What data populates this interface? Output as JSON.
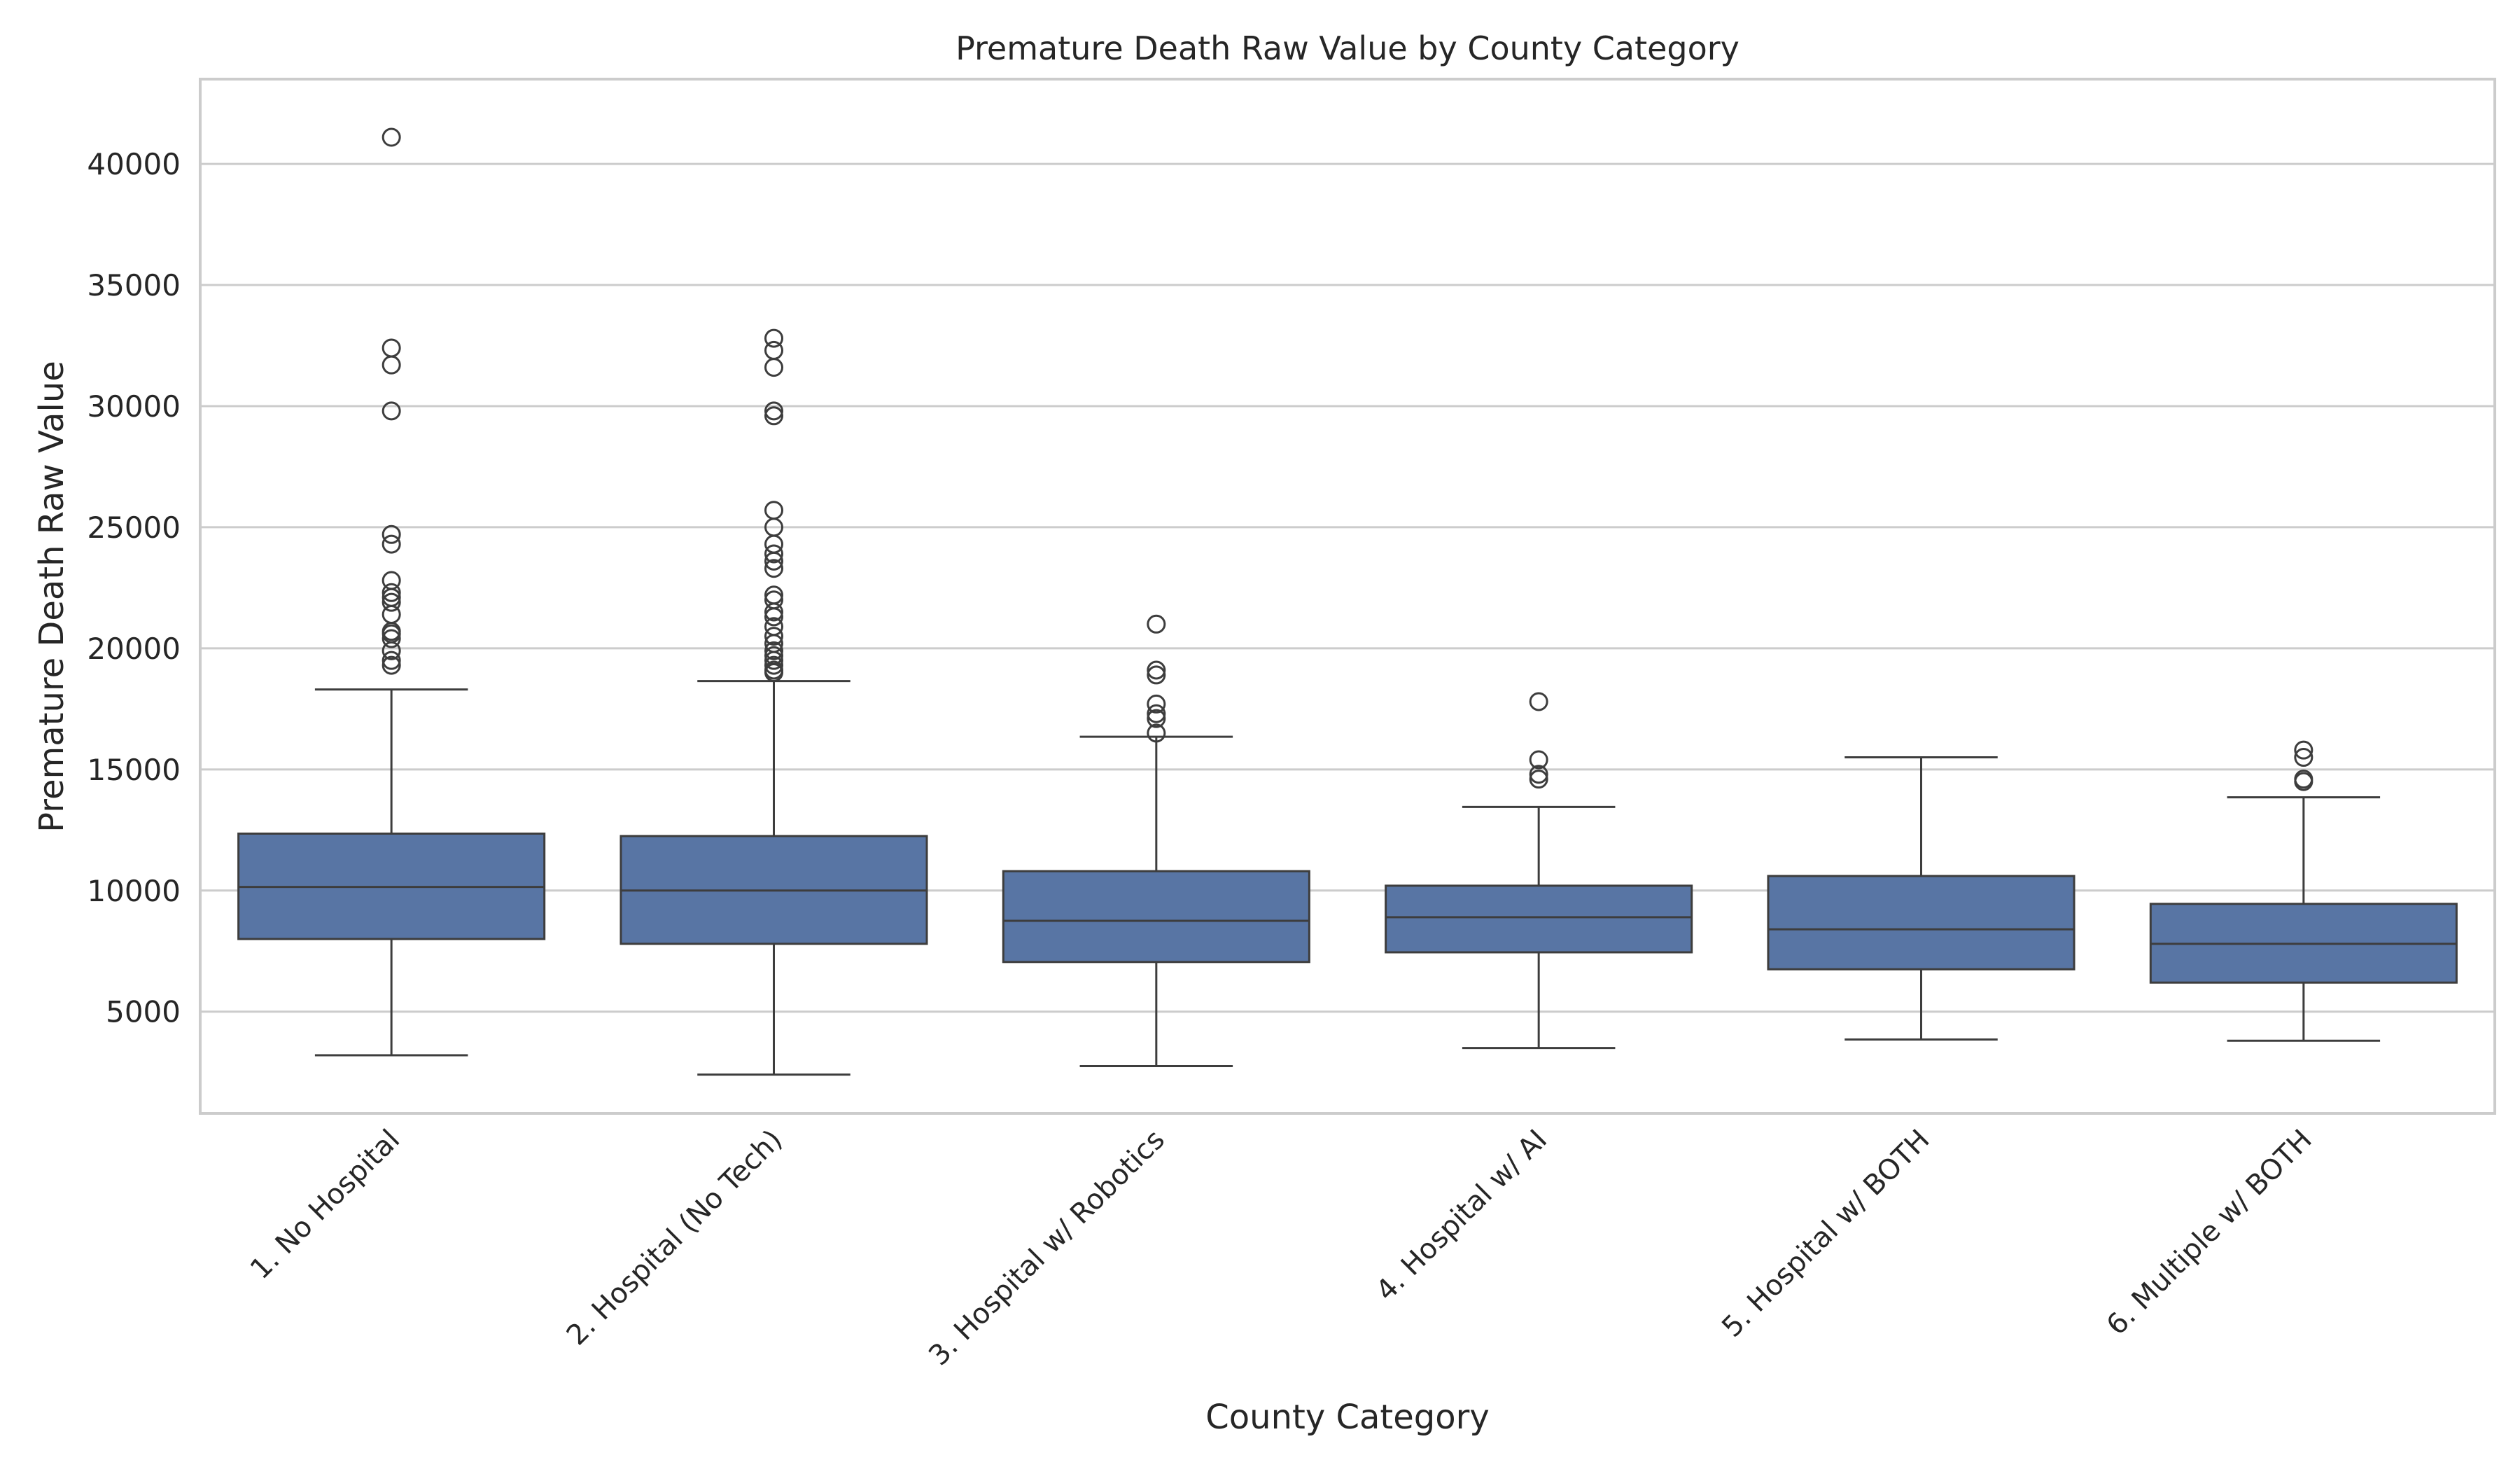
{
  "chart_data": {
    "type": "box",
    "title": "Premature Death Raw Value by County Category",
    "xlabel": "County Category",
    "ylabel": "Premature Death Raw Value",
    "ylim": [
      800,
      43500
    ],
    "yticks": [
      5000,
      10000,
      15000,
      20000,
      25000,
      30000,
      35000,
      40000
    ],
    "grid": "horizontal",
    "legend": "none",
    "colors": {
      "box_fill": "#5875a4",
      "line": "#3d3d3d",
      "grid": "#cccccc",
      "frame": "#cccccc"
    },
    "categories": [
      "1. No Hospital",
      "2. Hospital (No Tech)",
      "3. Hospital w/ Robotics",
      "4. Hospital w/ AI",
      "5. Hospital w/ BOTH",
      "6. Multiple w/ BOTH"
    ],
    "boxes": [
      {
        "whisker_low": 3200,
        "q1": 8000,
        "median": 10150,
        "q3": 12350,
        "whisker_high": 18300,
        "outliers": [
          19300,
          19500,
          19900,
          20400,
          20600,
          20700,
          21400,
          21900,
          22100,
          22300,
          22800,
          24300,
          24700,
          29800,
          31700,
          32400,
          41100
        ]
      },
      {
        "whisker_low": 2400,
        "q1": 7800,
        "median": 10000,
        "q3": 12250,
        "whisker_high": 18650,
        "outliers": [
          19000,
          19100,
          19300,
          19500,
          19700,
          19900,
          20200,
          20500,
          20900,
          21300,
          21500,
          22000,
          22200,
          23300,
          23600,
          23900,
          24300,
          25000,
          25700,
          29600,
          29800,
          31600,
          32300,
          32800
        ]
      },
      {
        "whisker_low": 2750,
        "q1": 7050,
        "median": 8750,
        "q3": 10800,
        "whisker_high": 16350,
        "outliers": [
          16500,
          17100,
          17300,
          17700,
          18900,
          19100,
          21000
        ]
      },
      {
        "whisker_low": 3500,
        "q1": 7450,
        "median": 8900,
        "q3": 10200,
        "whisker_high": 13450,
        "outliers": [
          14600,
          14800,
          15400,
          17800
        ]
      },
      {
        "whisker_low": 3850,
        "q1": 6750,
        "median": 8400,
        "q3": 10600,
        "whisker_high": 15500,
        "outliers": []
      },
      {
        "whisker_low": 3800,
        "q1": 6200,
        "median": 7800,
        "q3": 9450,
        "whisker_high": 13850,
        "outliers": [
          14500,
          14600,
          15500,
          15800
        ]
      }
    ]
  }
}
